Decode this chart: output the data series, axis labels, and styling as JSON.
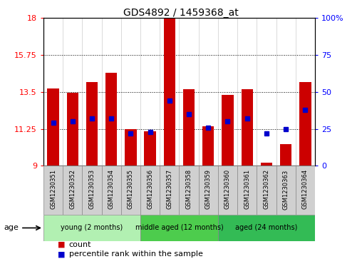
{
  "title": "GDS4892 / 1459368_at",
  "samples": [
    "GSM1230351",
    "GSM1230352",
    "GSM1230353",
    "GSM1230354",
    "GSM1230355",
    "GSM1230356",
    "GSM1230357",
    "GSM1230358",
    "GSM1230359",
    "GSM1230360",
    "GSM1230361",
    "GSM1230362",
    "GSM1230363",
    "GSM1230364"
  ],
  "counts": [
    13.7,
    13.45,
    14.1,
    14.65,
    11.25,
    11.1,
    18.0,
    13.65,
    11.4,
    13.3,
    13.65,
    9.2,
    10.3,
    14.1
  ],
  "percentiles": [
    29,
    30,
    32,
    32,
    22,
    23,
    44,
    35,
    26,
    30,
    32,
    22,
    25,
    38
  ],
  "ylim_left": [
    9,
    18
  ],
  "ylim_right": [
    0,
    100
  ],
  "yticks_left": [
    9,
    11.25,
    13.5,
    15.75,
    18
  ],
  "yticks_right": [
    0,
    25,
    50,
    75,
    100
  ],
  "ytick_labels_right": [
    "0",
    "25",
    "50",
    "75",
    "100%"
  ],
  "bar_color": "#cc0000",
  "percentile_color": "#0000cc",
  "groups": [
    {
      "label": "young (2 months)",
      "start": 0,
      "end": 5,
      "color": "#b2f0b2"
    },
    {
      "label": "middle aged (12 months)",
      "start": 5,
      "end": 9,
      "color": "#4dcc4d"
    },
    {
      "label": "aged (24 months)",
      "start": 9,
      "end": 14,
      "color": "#33bb55"
    }
  ],
  "age_label": "age",
  "legend_count_label": "count",
  "legend_percentile_label": "percentile rank within the sample",
  "xlabel_rotation": 90,
  "sample_box_color": "#d0d0d0",
  "sample_box_edge": "#aaaaaa"
}
